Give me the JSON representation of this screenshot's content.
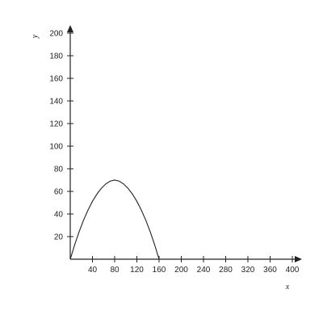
{
  "chart_data": {
    "type": "line",
    "title": "",
    "xlabel": "x",
    "ylabel": "y",
    "xlim": [
      0,
      400
    ],
    "ylim": [
      0,
      200
    ],
    "x_ticks": [
      40,
      80,
      120,
      160,
      200,
      240,
      280,
      320,
      360,
      400
    ],
    "y_ticks": [
      20,
      40,
      60,
      80,
      100,
      120,
      140,
      160,
      180,
      200
    ],
    "grid": false,
    "legend": "none",
    "series": [
      {
        "color": "#222222",
        "points": [
          [
            0,
            0
          ],
          [
            8,
            12.8
          ],
          [
            16,
            24.3
          ],
          [
            24,
            34.6
          ],
          [
            32,
            43.5
          ],
          [
            40,
            51.2
          ],
          [
            48,
            57.6
          ],
          [
            56,
            62.7
          ],
          [
            64,
            66.6
          ],
          [
            72,
            69.1
          ],
          [
            80,
            70.0
          ],
          [
            88,
            69.1
          ],
          [
            96,
            66.6
          ],
          [
            104,
            62.7
          ],
          [
            112,
            57.6
          ],
          [
            120,
            51.2
          ],
          [
            128,
            43.5
          ],
          [
            136,
            34.6
          ],
          [
            144,
            24.3
          ],
          [
            152,
            12.8
          ],
          [
            160,
            0
          ]
        ]
      }
    ],
    "axis_color": "#222222"
  }
}
